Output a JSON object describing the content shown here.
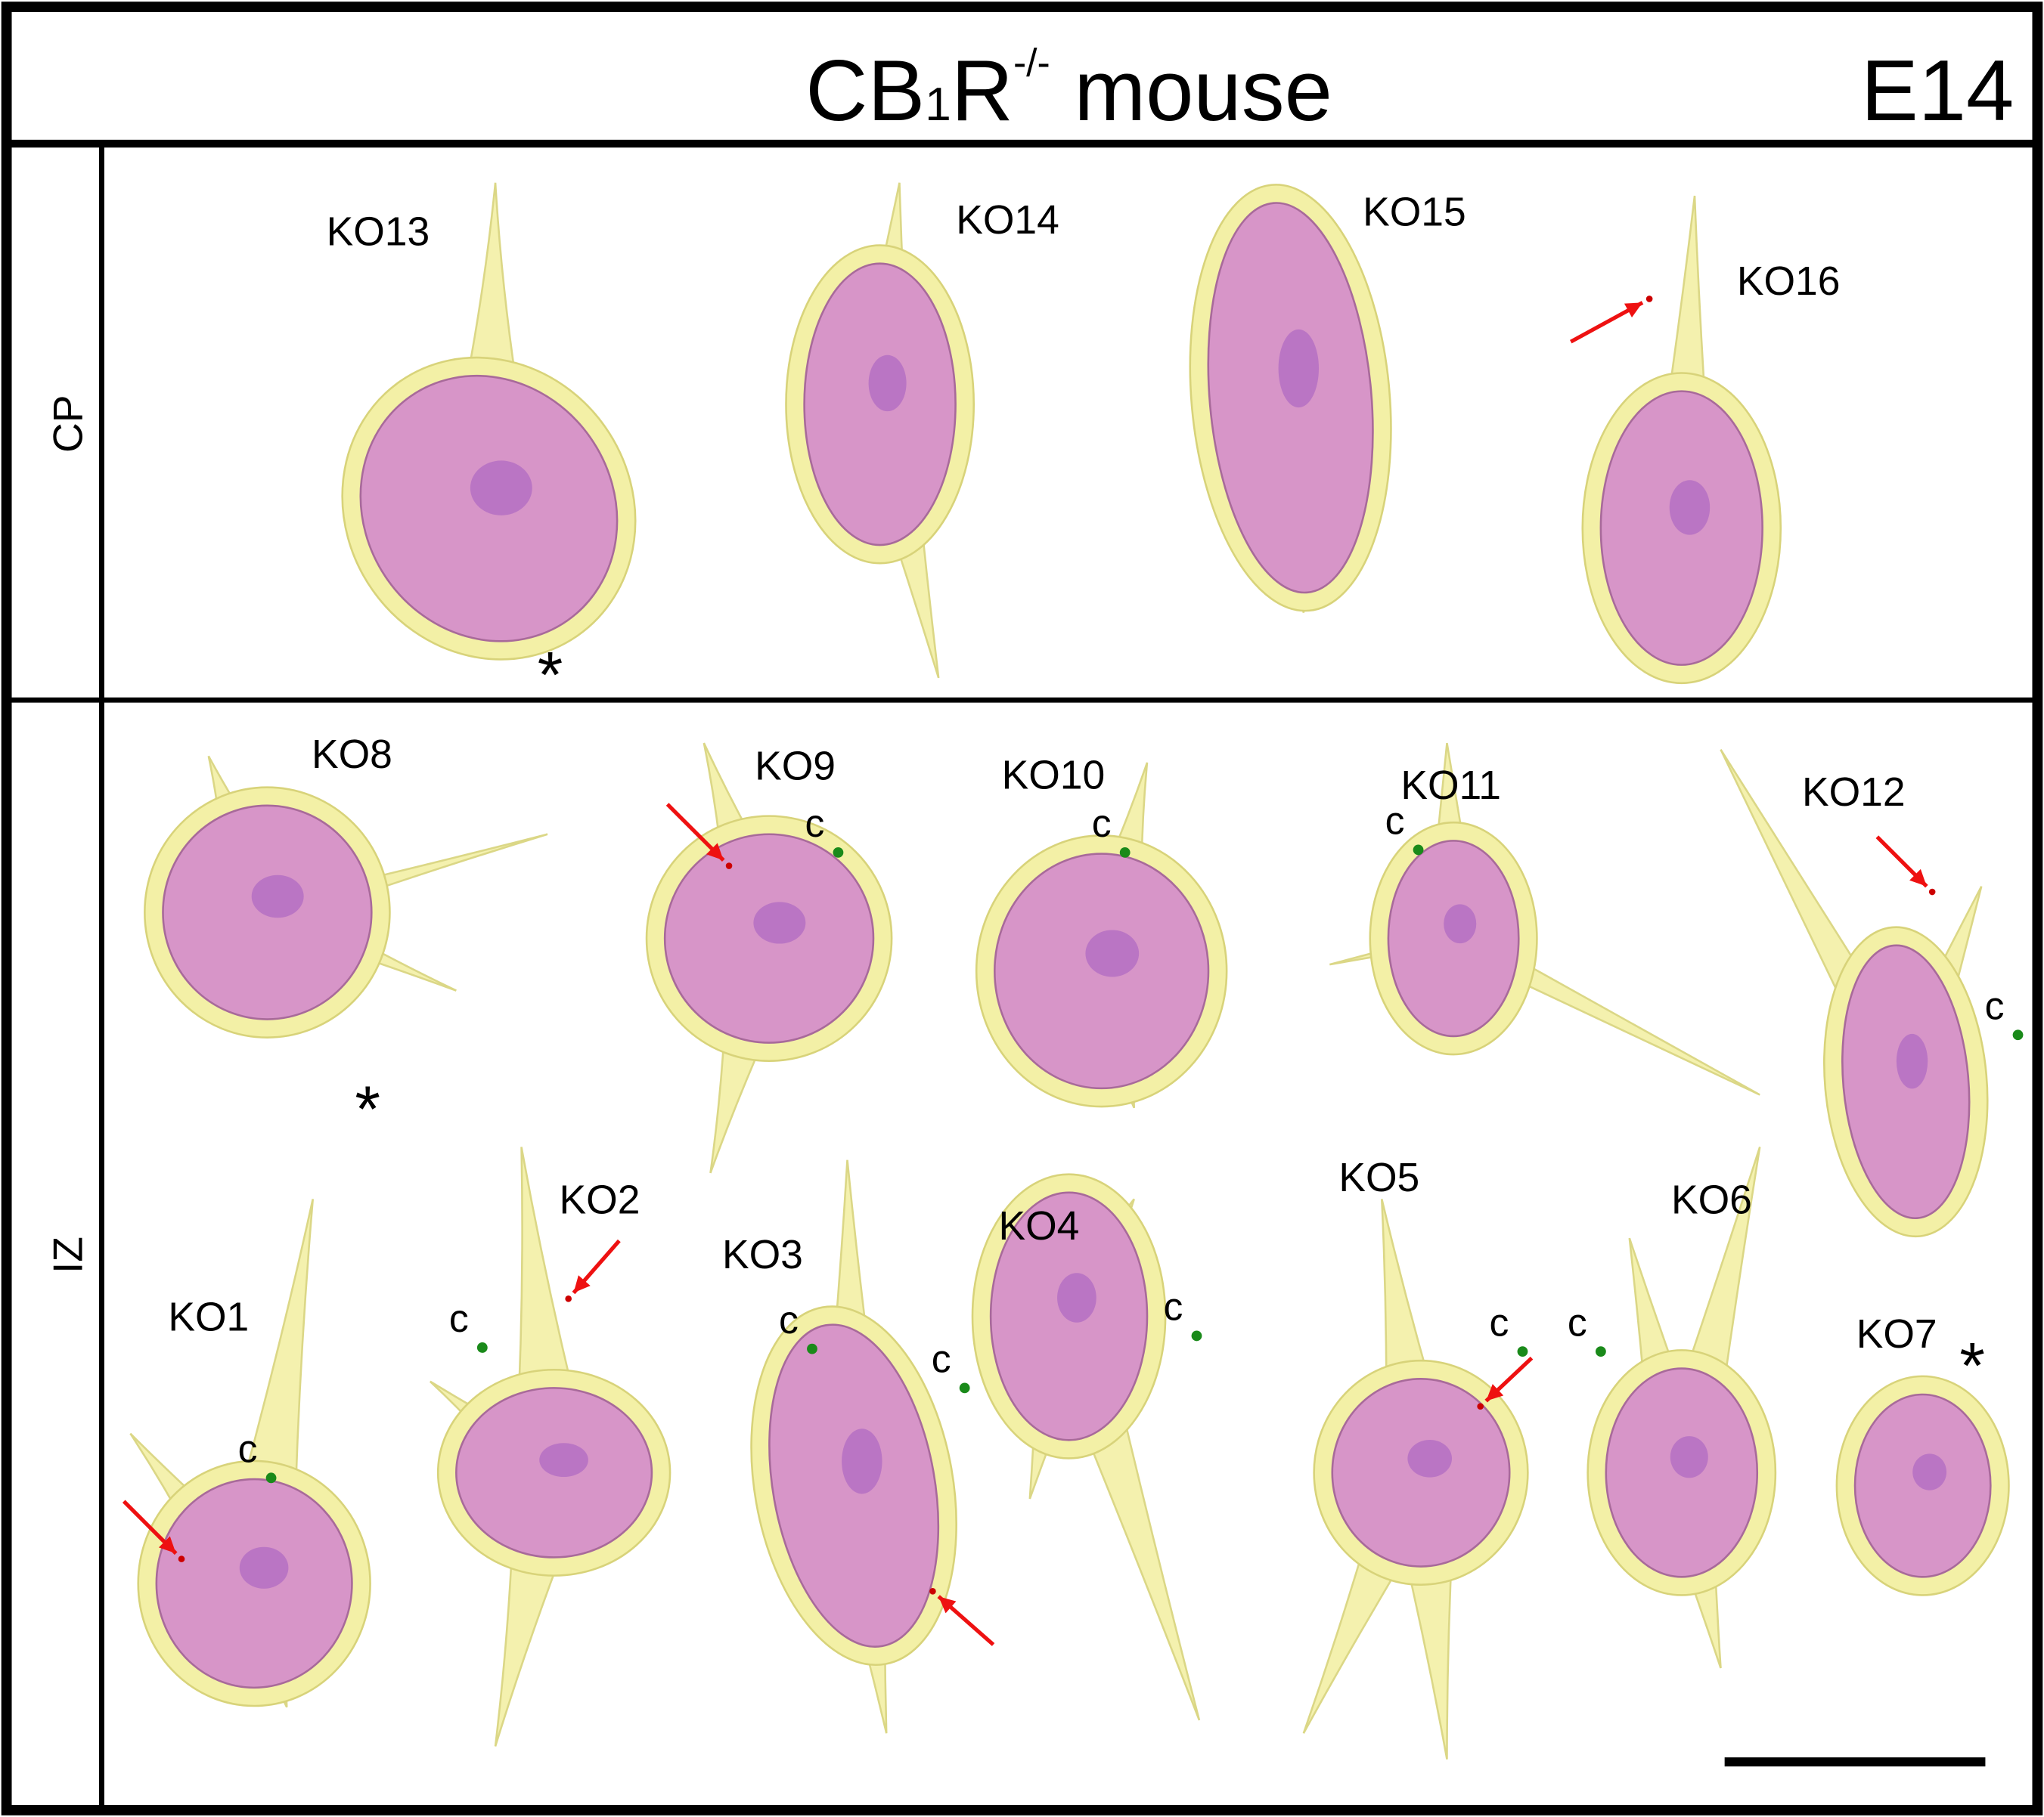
{
  "header": {
    "title": {
      "main": "CB",
      "sub": "1",
      "main2": "R",
      "sup": "-/-",
      "rest": " mouse"
    },
    "stage": "E14"
  },
  "rows": [
    {
      "label": "CP",
      "cells": [
        {
          "label": "KO13",
          "asterisk": "*"
        },
        {
          "label": "KO14"
        },
        {
          "label": "KO15"
        },
        {
          "label": "KO16"
        }
      ]
    },
    {
      "label": "IZ",
      "cells": [
        {
          "label": "KO8",
          "asterisk": "*"
        },
        {
          "label": "KO9",
          "c_labels": [
            "c"
          ]
        },
        {
          "label": "KO10",
          "c_labels": [
            "c"
          ]
        },
        {
          "label": "KO11",
          "c_labels": [
            "c"
          ]
        },
        {
          "label": "KO12",
          "c_labels": [
            "c"
          ]
        },
        {
          "label": "KO1",
          "c_labels": [
            "c"
          ]
        },
        {
          "label": "KO2",
          "c_labels": [
            "c"
          ]
        },
        {
          "label": "KO3",
          "c_labels": [
            "c",
            "c"
          ]
        },
        {
          "label": "KO4",
          "c_labels": [
            "c"
          ]
        },
        {
          "label": "KO5",
          "c_labels": [
            "c"
          ]
        },
        {
          "label": "KO6",
          "c_labels": [
            "c"
          ]
        },
        {
          "label": "KO7",
          "asterisk": "*"
        }
      ]
    }
  ]
}
